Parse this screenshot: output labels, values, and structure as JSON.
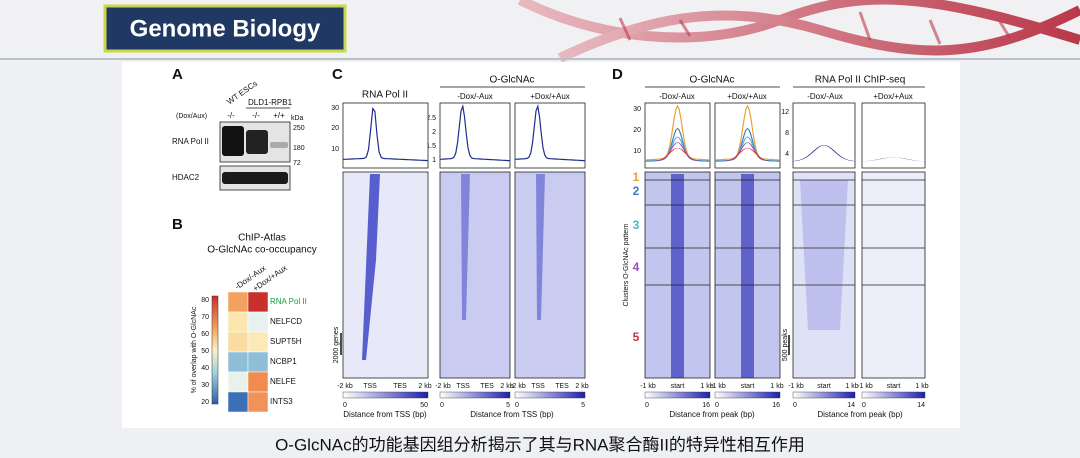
{
  "header": {
    "title": "Genome Biology"
  },
  "caption": "O-GlcNAc的功能基因组分析揭示了其与RNA聚合酶II的特异性相互作用",
  "panel_a": {
    "label": "A",
    "lanes_header": [
      "WT ESCs",
      "DLD1-RPB1"
    ],
    "condition_label": "(Dox/Aux)",
    "conditions": [
      "-/-",
      "-/-",
      "+/+"
    ],
    "kda_label": "kDa",
    "markers": [
      "250",
      "180",
      "72"
    ],
    "rows": [
      "RNA Pol II",
      "HDAC2"
    ]
  },
  "panel_b": {
    "label": "B",
    "title": [
      "ChIP-Atlas",
      "O-GlcNAc co-occupancy"
    ],
    "columns": [
      "-Dox/-Aux",
      "+Dox/+Aux"
    ],
    "rows": [
      "RNA Pol II",
      "NELFCD",
      "SUPT5H",
      "NCBP1",
      "NELFE",
      "INTS3"
    ],
    "colorbar_label": "% of overlap with O-GlcNAc",
    "colorbar_ticks": [
      "80",
      "70",
      "60",
      "50",
      "40",
      "30",
      "20"
    ]
  },
  "panel_c": {
    "label": "C",
    "titles": [
      "RNA Pol II",
      "O-GlcNAc"
    ],
    "subtitles": [
      "-Dox/-Aux",
      "+Dox/+Aux"
    ],
    "yticks_pol2": [
      "30",
      "20",
      "10"
    ],
    "yticks_oglcnac": [
      "2.5",
      "2",
      "1.5",
      "1"
    ],
    "xticks": [
      "-2 kb",
      "TSS",
      "TES",
      "2 kb"
    ],
    "scale_label": "2000 genes",
    "x_title": "Distance from TSS (bp)",
    "colorbars": [
      [
        "0",
        "50"
      ],
      [
        "0",
        "5"
      ],
      [
        "0",
        "5"
      ]
    ]
  },
  "panel_d": {
    "label": "D",
    "titles": [
      "O-GlcNAc",
      "RNA Pol II ChIP-seq"
    ],
    "subtitles": [
      "-Dox/-Aux",
      "+Dox/+Aux"
    ],
    "yticks_oglcnac": [
      "30",
      "20",
      "10"
    ],
    "yticks_pol2": [
      "12",
      "8",
      "4"
    ],
    "clusters": [
      "1",
      "2",
      "3",
      "4",
      "5"
    ],
    "cluster_axis": "Clusters O-GlcNAc pattern",
    "scale_label": "500 peaks",
    "xticks": [
      "-1 kb",
      "start",
      "1 kb"
    ],
    "x_title": "Distance from peak (bp)",
    "colorbars": [
      [
        "0",
        "16"
      ],
      [
        "0",
        "16"
      ],
      [
        "0",
        "14"
      ],
      [
        "0",
        "14"
      ]
    ]
  }
}
